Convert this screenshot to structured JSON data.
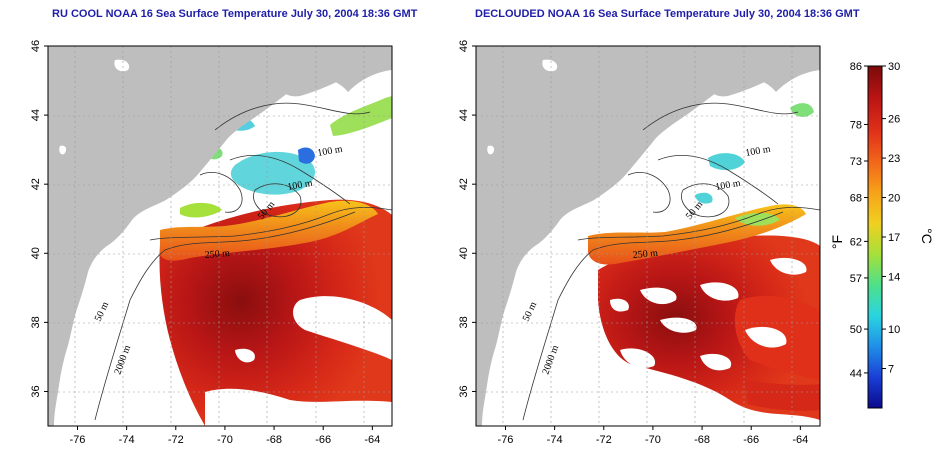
{
  "panels": [
    {
      "id": "left",
      "title": "RU COOL NOAA 16 Sea Surface Temperature July 30, 2004 18:36 GMT",
      "mode": "raw"
    },
    {
      "id": "right",
      "title": "DECLOUDED NOAA 16 Sea Surface Temperature July 30, 2004 18:36 GMT",
      "mode": "declouded"
    }
  ],
  "axes": {
    "x_ticks": [
      "-76",
      "-74",
      "-72",
      "-70",
      "-68",
      "-66",
      "-64"
    ],
    "x_values": [
      -76,
      -74,
      -72,
      -70,
      -68,
      -66,
      -64
    ],
    "y_ticks": [
      "36",
      "38",
      "40",
      "42",
      "44",
      "46"
    ],
    "y_values": [
      36,
      38,
      40,
      42,
      44,
      46
    ],
    "lon_range": [
      -77.2,
      -63.2
    ],
    "lat_range": [
      35.0,
      46.0
    ]
  },
  "contour_labels": [
    "100 m",
    "100 m",
    "50 m",
    "250 m",
    "50 m",
    "2000 m"
  ],
  "colorbar": {
    "fahrenheit_ticks": [
      "86",
      "78",
      "73",
      "68",
      "62",
      "57",
      "50",
      "44"
    ],
    "fahrenheit_values": [
      86,
      78,
      73,
      68,
      62,
      57,
      50,
      44
    ],
    "celsius_ticks": [
      "30",
      "26",
      "23",
      "20",
      "17",
      "14",
      "10",
      "7"
    ],
    "celsius_values": [
      30,
      26,
      23,
      20,
      17,
      14,
      10,
      7
    ],
    "fahrenheit_label": "°F",
    "celsius_label": "°C",
    "range_c": [
      4,
      30
    ],
    "colors": [
      "#0a0a8c",
      "#1a3fd6",
      "#1f8fe8",
      "#2ad4e0",
      "#4ee08a",
      "#a6e03a",
      "#f0d020",
      "#f7a21a",
      "#f2661a",
      "#e0301a",
      "#b81414",
      "#7a0a0a"
    ]
  },
  "colors": {
    "land": "#bebebe",
    "ocean_no_data": "#ffffff",
    "contour": "#333333",
    "title": "#1e1ea8",
    "grid": "#9a9a9a"
  }
}
